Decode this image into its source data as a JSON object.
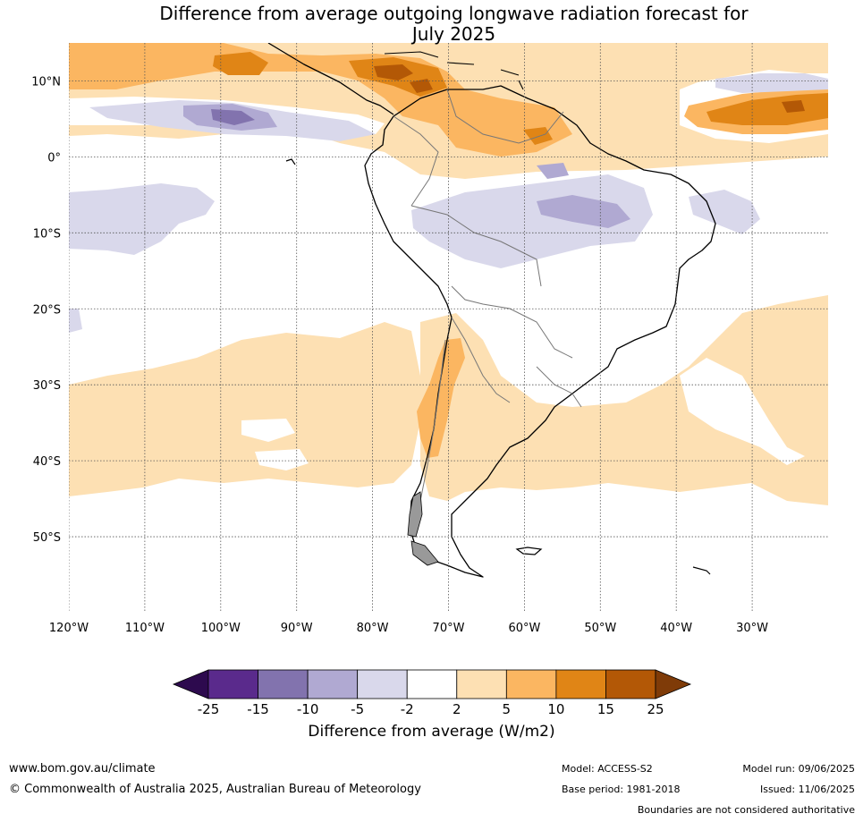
{
  "title": {
    "line1": "Difference from average outgoing longwave radiation forecast for",
    "line2": "July 2025"
  },
  "map": {
    "lat_labels": [
      "10°N",
      "0°",
      "10°S",
      "20°S",
      "30°S",
      "40°S",
      "50°S"
    ],
    "lat_values": [
      10,
      0,
      -10,
      -20,
      -30,
      -40,
      -50
    ],
    "lon_labels": [
      "120°W",
      "110°W",
      "100°W",
      "90°W",
      "80°W",
      "70°W",
      "60°W",
      "50°W",
      "40°W",
      "30°W"
    ],
    "lon_values": [
      -120,
      -110,
      -100,
      -90,
      -80,
      -70,
      -60,
      -50,
      -40,
      -30
    ],
    "lon_range": [
      -120,
      -20
    ],
    "lat_range": [
      -60,
      15
    ]
  },
  "colorbar": {
    "tick_labels": [
      "-25",
      "-15",
      "-10",
      "-5",
      "-2",
      "2",
      "5",
      "10",
      "15",
      "25"
    ],
    "colors": [
      "#2d0a4e",
      "#5a2a8c",
      "#8273ae",
      "#b0a9d2",
      "#d9d8eb",
      "#ffffff",
      "#fde0b3",
      "#fbb661",
      "#e08516",
      "#b35806",
      "#7f3b08"
    ],
    "label": "Difference from average (W/m2)"
  },
  "footer": {
    "url": "www.bom.gov.au/climate",
    "copyright": "© Commonwealth of Australia 2025, Australian Bureau of Meteorology",
    "model": "Model: ACCESS-S2",
    "base_period": "Base period: 1981-2018",
    "model_run": "Model run: 09/06/2025",
    "issued": "Issued: 11/06/2025",
    "boundaries_note": "Boundaries are not considered authoritative"
  }
}
